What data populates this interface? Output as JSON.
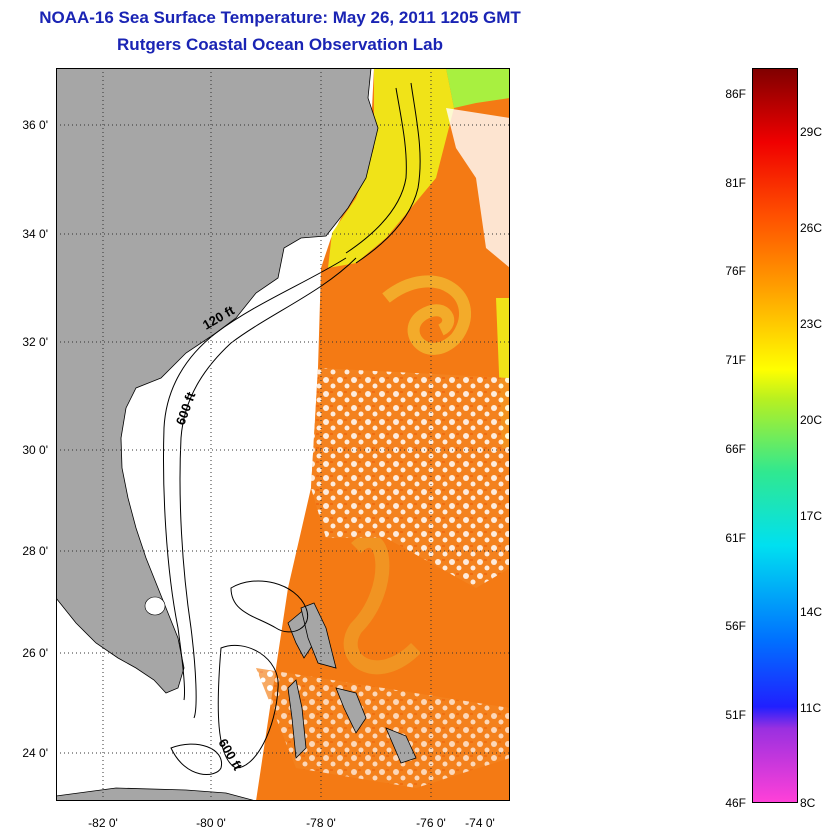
{
  "header": {
    "title": "NOAA-16 Sea Surface Temperature:  May 26, 2011 1205 GMT",
    "subtitle": "Rutgers Coastal Ocean Observation Lab"
  },
  "map": {
    "lat_labels": [
      "36 0'",
      "34 0'",
      "32 0'",
      "30 0'",
      "28 0'",
      "26 0'",
      "24 0'"
    ],
    "lon_labels": [
      "-82 0'",
      "-80 0'",
      "-78 0'",
      "-76 0'",
      "-74 0'"
    ],
    "contour_labels": [
      "120 ft",
      "600 ft",
      "600 ft"
    ],
    "colors": {
      "land": "#a6a6a6",
      "ocean_warm": "#f37c18",
      "ocean_yellow": "#f2ea14",
      "cloud": "#ffffff"
    }
  },
  "colorbar": {
    "f_labels": [
      "86F",
      "81F",
      "76F",
      "71F",
      "66F",
      "61F",
      "56F",
      "51F",
      "46F"
    ],
    "c_labels": [
      "29C",
      "26C",
      "23C",
      "20C",
      "17C",
      "14C",
      "11C",
      "8C"
    ]
  }
}
